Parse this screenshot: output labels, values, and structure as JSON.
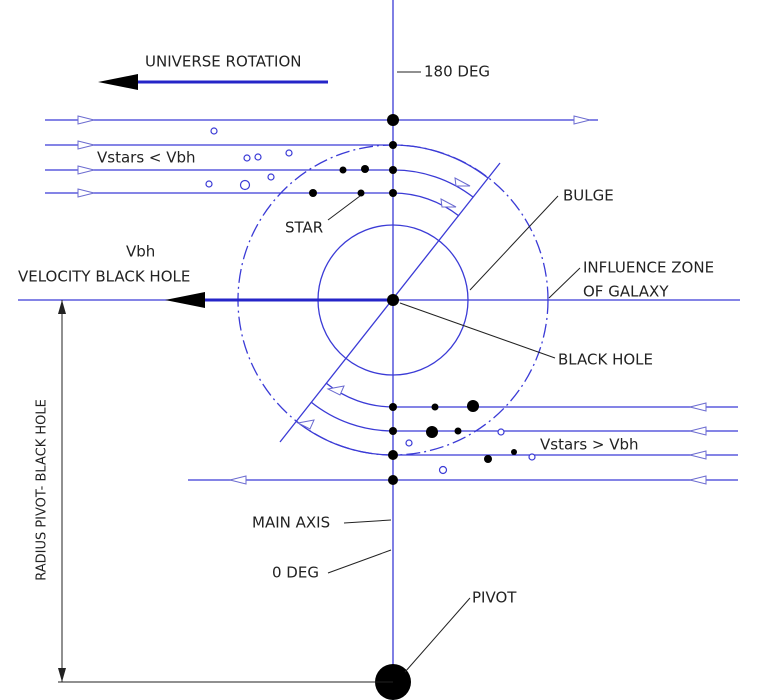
{
  "labels": {
    "universe_rotation": "UNIVERSE ROTATION",
    "deg180": "180 DEG",
    "vstars_less": "Vstars < Vbh",
    "star": "STAR",
    "vbh": "Vbh",
    "velocity_black_hole": "VELOCITY BLACK HOLE",
    "bulge": "BULGE",
    "influence_zone": "INFLUENCE  ZONE",
    "of_galaxy": "OF GALAXY",
    "black_hole": "BLACK HOLE",
    "vstars_greater": "Vstars > Vbh",
    "main_axis": "MAIN AXIS",
    "deg0": "0 DEG",
    "pivot": "PIVOT",
    "radius": "RADIUS  PIVOT- BLACK HOLE"
  }
}
